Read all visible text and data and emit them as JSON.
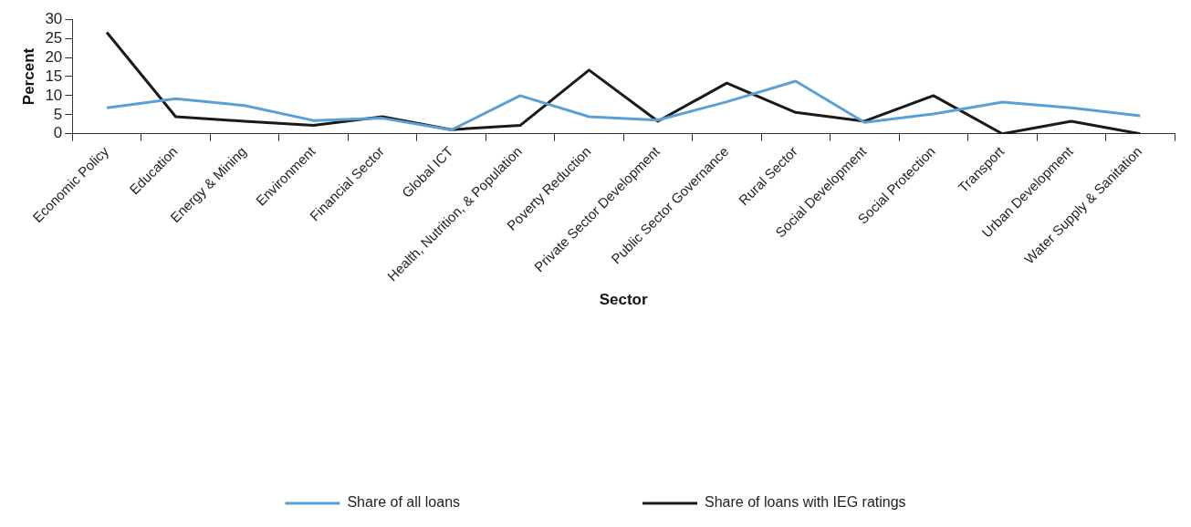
{
  "chart_data": {
    "type": "line",
    "xlabel": "Sector",
    "ylabel": "Percent",
    "categories": [
      "Economic Policy",
      "Education",
      "Energy & Mining",
      "Environment",
      "Financial Sector",
      "Global ICT",
      "Health, Nutrition, & Population",
      "Poverty Reduction",
      "Private Sector Development",
      "Public Sector Governance",
      "Rural Sector",
      "Social Development",
      "Social Protection",
      "Transport",
      "Urban Development",
      "Water Supply & Sanitation"
    ],
    "series": [
      {
        "name": "Share of all loans",
        "color": "#5aa0d6",
        "values": [
          6.8,
          9.2,
          7.4,
          3.5,
          4.1,
          1.0,
          10.0,
          4.5,
          3.6,
          8.4,
          13.8,
          3.0,
          5.2,
          8.3,
          6.8,
          4.7
        ]
      },
      {
        "name": "Share of loans with IEG ratings",
        "color": "#1a1a1a",
        "values": [
          26.6,
          4.5,
          3.3,
          2.2,
          4.5,
          1.1,
          2.2,
          16.7,
          3.3,
          13.3,
          5.6,
          3.3,
          10.0,
          0,
          3.3,
          0
        ]
      }
    ],
    "ylim": [
      0,
      30
    ],
    "yticks": [
      0,
      5,
      10,
      15,
      20,
      25,
      30
    ],
    "grid": false,
    "legend": "bottom",
    "marker": "none",
    "line_style": "solid"
  }
}
